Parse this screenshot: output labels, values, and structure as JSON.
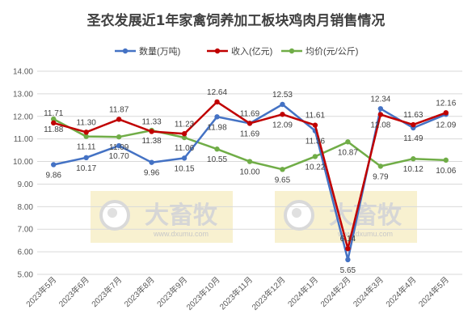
{
  "chart_data": {
    "type": "line",
    "title": "圣农发展近1年家禽饲养加工板块鸡肉月销售情况",
    "xlabel": "",
    "ylabel": "",
    "ylim": [
      5.0,
      14.0
    ],
    "ytick_step": 1.0,
    "grid": true,
    "legend_position": "top",
    "categories": [
      "2023年5月",
      "2023年6月",
      "2023年7月",
      "2023年8月",
      "2023年9月",
      "2023年10月",
      "2023年11月",
      "2023年12月",
      "2024年1月",
      "2024年2月",
      "2024年3月",
      "2024年4月",
      "2024年5月"
    ],
    "series": [
      {
        "name": "数量(万吨)",
        "color": "#4472C4",
        "values": [
          9.86,
          10.17,
          10.7,
          9.96,
          10.15,
          11.98,
          11.69,
          12.53,
          11.36,
          5.65,
          12.34,
          11.49,
          12.09
        ]
      },
      {
        "name": "收入(亿元)",
        "color": "#C00000",
        "values": [
          11.71,
          11.3,
          11.87,
          11.33,
          11.23,
          12.64,
          11.69,
          12.09,
          11.61,
          6.14,
          12.08,
          11.63,
          12.16
        ]
      },
      {
        "name": "均价(元/公斤)",
        "color": "#70AD47",
        "values": [
          11.88,
          11.11,
          11.09,
          11.38,
          11.06,
          10.55,
          10.0,
          9.65,
          10.22,
          10.87,
          9.79,
          10.12,
          10.06
        ]
      }
    ],
    "watermark": {
      "brand": "大畜牧",
      "url": "www.dxumu.com"
    }
  }
}
